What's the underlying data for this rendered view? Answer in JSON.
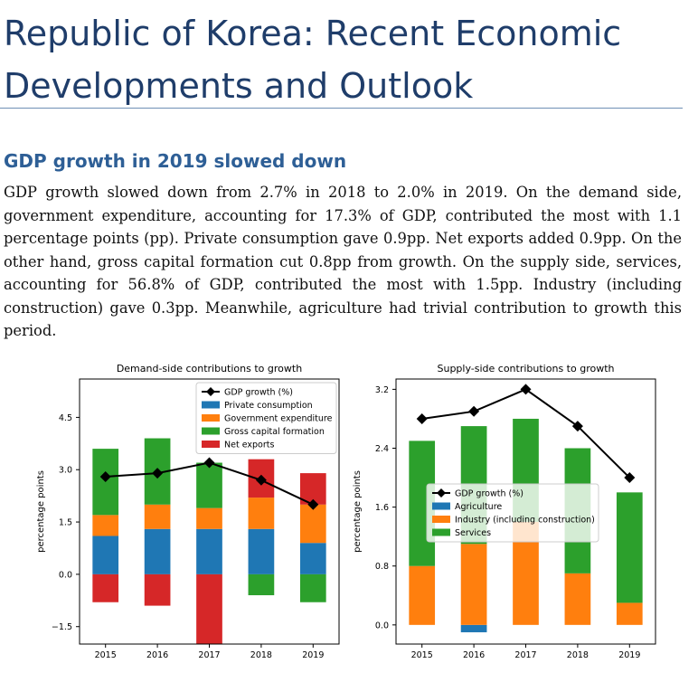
{
  "page": {
    "title": "Republic of Korea: Recent Economic Developments and Outlook",
    "section_title": "GDP growth in 2019 slowed down",
    "paragraph": "GDP growth slowed down from 2.7% in 2018 to 2.0% in 2019. On the demand side, government expenditure, accounting for 17.3% of GDP, contributed the most with 1.1 percentage points (pp). Private consumption gave 0.9pp. Net exports added 0.9pp. On the other hand, gross capital formation cut 0.8pp from growth. On the supply side, services, accounting for 56.8% of GDP, contributed the most with 1.5pp. Industry (including construction) gave 0.3pp. Meanwhile, agriculture had trivial contribution to growth this period."
  },
  "chart_data": [
    {
      "type": "bar",
      "stacked": true,
      "title": "Demand-side contributions to growth",
      "xlabel": "",
      "ylabel": "percentage points",
      "categories": [
        "2015",
        "2016",
        "2017",
        "2018",
        "2019"
      ],
      "ylim": [
        -2.0,
        5.6
      ],
      "yticks": [
        -1.5,
        0.0,
        1.5,
        3.0,
        4.5
      ],
      "ytick_labels": [
        "−1.5",
        "0.0",
        "1.5",
        "3.0",
        "4.5"
      ],
      "grid": false,
      "legend_position": "top-right",
      "series": [
        {
          "name": "Private consumption",
          "color": "#1f77b4",
          "values": [
            1.1,
            1.3,
            1.3,
            1.3,
            0.9
          ]
        },
        {
          "name": "Government expenditure",
          "color": "#ff7f0e",
          "values": [
            0.6,
            0.7,
            0.6,
            0.9,
            1.1
          ]
        },
        {
          "name": "Gross capital formation",
          "color": "#2ca02c",
          "values": [
            1.9,
            1.9,
            1.3,
            -0.6,
            -0.8
          ]
        },
        {
          "name": "Net exports",
          "color": "#d62728",
          "values": [
            -0.8,
            -0.9,
            -2.0,
            1.1,
            0.9
          ]
        }
      ],
      "line": {
        "name": "GDP growth (%)",
        "color": "#000000",
        "values": [
          2.8,
          2.9,
          3.2,
          2.7,
          2.0
        ]
      }
    },
    {
      "type": "bar",
      "stacked": true,
      "title": "Supply-side contributions to growth",
      "xlabel": "",
      "ylabel": "percentage points",
      "categories": [
        "2015",
        "2016",
        "2017",
        "2018",
        "2019"
      ],
      "ylim": [
        -0.26,
        3.34
      ],
      "yticks": [
        0.0,
        0.8,
        1.6,
        2.4,
        3.2
      ],
      "ytick_labels": [
        "0.0",
        "0.8",
        "1.6",
        "2.4",
        "3.2"
      ],
      "grid": false,
      "legend_position": "center",
      "series": [
        {
          "name": "Agriculture",
          "color": "#1f77b4",
          "values": [
            0.0,
            -0.1,
            0.0,
            0.0,
            0.0
          ]
        },
        {
          "name": "Industry (including construction)",
          "color": "#ff7f0e",
          "values": [
            0.8,
            1.1,
            1.4,
            0.7,
            0.3
          ]
        },
        {
          "name": "Services",
          "color": "#2ca02c",
          "values": [
            1.7,
            1.6,
            1.4,
            1.7,
            1.5
          ]
        }
      ],
      "line": {
        "name": "GDP growth (%)",
        "color": "#000000",
        "values": [
          2.8,
          2.9,
          3.2,
          2.7,
          2.0
        ]
      }
    }
  ]
}
